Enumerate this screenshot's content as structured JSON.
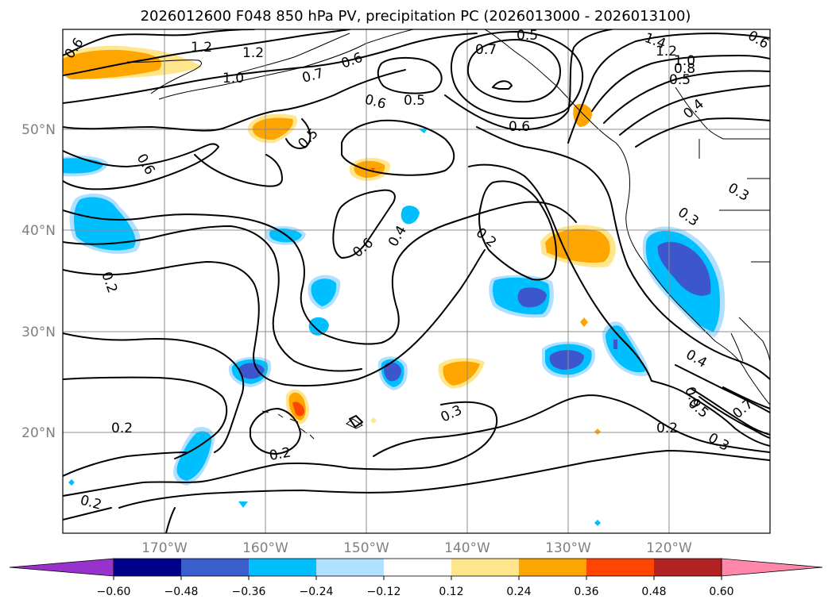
{
  "title": "2026012600 F048 850 hPa PV, precipitation PC (2026013000 - 2026013100)",
  "map": {
    "lon_labels": [
      "170°W",
      "160°W",
      "150°W",
      "140°W",
      "130°W",
      "120°W"
    ],
    "lat_labels": [
      "50°N",
      "40°N",
      "30°N",
      "20°N"
    ],
    "contour_labels": [
      "0.6",
      "1.2",
      "1.2",
      "1.0",
      "0.7",
      "0.6",
      "0.6",
      "0.5",
      "0.6",
      "0.7",
      "0.5",
      "0.6",
      "0.5",
      "1.4",
      "1.2",
      "1.0",
      "0.8",
      "0.5",
      "0.4",
      "0.6",
      "0.6",
      "0.4",
      "0.2",
      "0.3",
      "0.3",
      "0.2",
      "0.4",
      "0.9",
      "0.5",
      "0.7",
      "0.3",
      "0.2",
      "0.3",
      "0.2",
      "0.2",
      "0.2"
    ],
    "colors": {
      "orange": "#ffa500",
      "light_yellow": "#ffe68c",
      "deep_sky_blue": "#00bfff",
      "light_blue": "#b0e0ff",
      "royal_blue": "#3c56cd",
      "orange_red": "#ff4500"
    }
  },
  "colorbar": {
    "ticks": [
      "−0.60",
      "−0.48",
      "−0.36",
      "−0.24",
      "−0.12",
      "0.12",
      "0.24",
      "0.36",
      "0.48",
      "0.60"
    ],
    "colors": [
      "#9932cc",
      "#00008b",
      "#3a5fcd",
      "#00bfff",
      "#b0e2ff",
      "#ffffff",
      "#ffe68c",
      "#ffa500",
      "#ff4500",
      "#b22222",
      "#ff88aa"
    ]
  }
}
